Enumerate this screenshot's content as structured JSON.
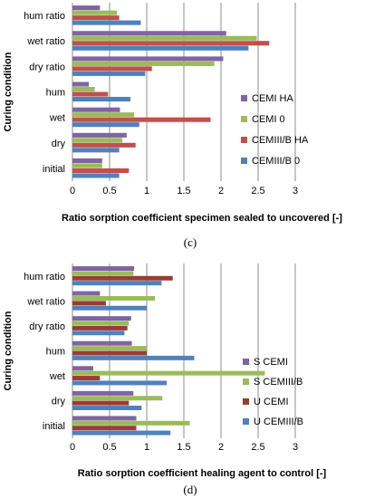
{
  "chart_data": [
    {
      "type": "bar",
      "orientation": "horizontal",
      "caption": "(c)",
      "ylabel": "Curing condition",
      "xlabel": "Ratio sorption coefficient specimen sealed to uncovered [-]",
      "xlim": [
        0,
        3
      ],
      "xticks": [
        "0",
        "0.5",
        "1",
        "1.5",
        "2",
        "2.5",
        "3"
      ],
      "grid": true,
      "legend_position": "right",
      "categories": [
        "initial",
        "dry",
        "wet",
        "hum",
        "dry ratio",
        "wet ratio",
        "hum ratio"
      ],
      "series": [
        {
          "name": "CEMIII/B 0",
          "color": "#4f81bd",
          "values": [
            0.63,
            0.63,
            0.9,
            0.78,
            0.98,
            2.37,
            0.92
          ]
        },
        {
          "name": "CEMIII/B HA",
          "color": "#c0504d",
          "values": [
            0.76,
            0.85,
            1.86,
            0.48,
            1.07,
            2.65,
            0.63
          ]
        },
        {
          "name": "CEMI 0",
          "color": "#9bbb59",
          "values": [
            0.4,
            0.67,
            0.83,
            0.3,
            1.91,
            2.48,
            0.6
          ]
        },
        {
          "name": "CEMI HA",
          "color": "#8064a2",
          "values": [
            0.4,
            0.73,
            0.64,
            0.22,
            2.03,
            2.07,
            0.37
          ]
        }
      ]
    },
    {
      "type": "bar",
      "orientation": "horizontal",
      "caption": "(d)",
      "ylabel": "Curing condition",
      "xlabel": "Ratio sorption coefficient healing agent to control [-]",
      "xlim": [
        0,
        3
      ],
      "xticks": [
        "0",
        "0.5",
        "1",
        "1.5",
        "2",
        "2.5",
        "3"
      ],
      "grid": true,
      "legend_position": "right",
      "categories": [
        "initial",
        "dry",
        "wet",
        "hum",
        "dry ratio",
        "wet ratio",
        "hum ratio"
      ],
      "series": [
        {
          "name": "U CEMIII/B",
          "color": "#4f81bd",
          "values": [
            1.32,
            0.93,
            1.27,
            1.64,
            0.7,
            1.0,
            1.2
          ]
        },
        {
          "name": "U CEMI",
          "color": "#9b3b35",
          "values": [
            0.86,
            0.76,
            0.37,
            1.0,
            0.74,
            0.45,
            1.35
          ]
        },
        {
          "name": "S CEMIII/B",
          "color": "#9bbb59",
          "values": [
            1.58,
            1.21,
            2.59,
            1.0,
            0.76,
            1.11,
            0.82
          ]
        },
        {
          "name": "S CEMI",
          "color": "#8064a2",
          "values": [
            0.86,
            0.82,
            0.28,
            0.8,
            0.79,
            0.37,
            0.83
          ]
        }
      ]
    }
  ]
}
